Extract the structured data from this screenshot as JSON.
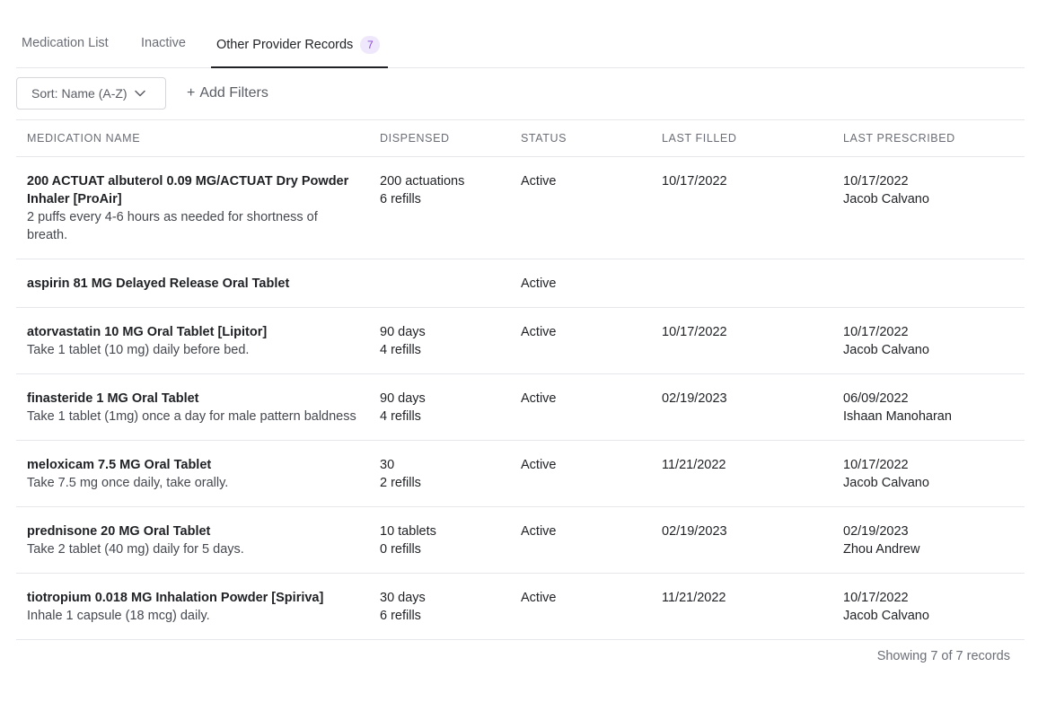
{
  "tabs": [
    {
      "label": "Medication List"
    },
    {
      "label": "Inactive"
    },
    {
      "label": "Other Provider Records",
      "count": "7"
    }
  ],
  "toolbar": {
    "sort_label": "Sort: Name (A-Z)",
    "filters_plus": "+",
    "filters_label": "Add Filters"
  },
  "table": {
    "columns": [
      "MEDICATION NAME",
      "DISPENSED",
      "STATUS",
      "LAST FILLED",
      "LAST PRESCRIBED"
    ],
    "rows": [
      {
        "name": "200 ACTUAT albuterol 0.09 MG/ACTUAT Dry Powder Inhaler [ProAir]",
        "instructions": "2 puffs every 4-6 hours as needed for shortness of breath.",
        "dispensed": "200 actuations",
        "refills": "6 refills",
        "status": "Active",
        "last_filled": "10/17/2022",
        "last_prescribed_date": "10/17/2022",
        "prescriber": "Jacob Calvano"
      },
      {
        "name": "aspirin 81 MG Delayed Release Oral Tablet",
        "instructions": "",
        "dispensed": "",
        "refills": "",
        "status": "Active",
        "last_filled": "",
        "last_prescribed_date": "",
        "prescriber": ""
      },
      {
        "name": "atorvastatin 10 MG Oral Tablet [Lipitor]",
        "instructions": "Take 1 tablet (10 mg) daily before bed.",
        "dispensed": "90 days",
        "refills": "4 refills",
        "status": "Active",
        "last_filled": "10/17/2022",
        "last_prescribed_date": "10/17/2022",
        "prescriber": "Jacob Calvano"
      },
      {
        "name": "finasteride 1 MG Oral Tablet",
        "instructions": "Take 1 tablet (1mg) once a day for male pattern baldness",
        "dispensed": "90 days",
        "refills": "4 refills",
        "status": "Active",
        "last_filled": "02/19/2023",
        "last_prescribed_date": "06/09/2022",
        "prescriber": "Ishaan Manoharan"
      },
      {
        "name": "meloxicam 7.5 MG Oral Tablet",
        "instructions": "Take 7.5 mg once daily, take orally.",
        "dispensed": "30",
        "refills": "2 refills",
        "status": "Active",
        "last_filled": "11/21/2022",
        "last_prescribed_date": "10/17/2022",
        "prescriber": "Jacob Calvano"
      },
      {
        "name": "prednisone 20 MG Oral Tablet",
        "instructions": "Take 2 tablet (40 mg) daily for 5 days.",
        "dispensed": "10 tablets",
        "refills": "0 refills",
        "status": "Active",
        "last_filled": "02/19/2023",
        "last_prescribed_date": "02/19/2023",
        "prescriber": "Zhou Andrew"
      },
      {
        "name": "tiotropium 0.018 MG Inhalation Powder [Spiriva]",
        "instructions": "Inhale 1 capsule (18 mcg) daily.",
        "dispensed": "30 days",
        "refills": "6 refills",
        "status": "Active",
        "last_filled": "11/21/2022",
        "last_prescribed_date": "10/17/2022",
        "prescriber": "Jacob Calvano"
      }
    ]
  },
  "footer": {
    "summary": "Showing 7 of 7 records"
  },
  "colors": {
    "accent_badge_bg": "#efe7fb",
    "accent_badge_text": "#8a4bd6",
    "border": "#e6e7ea"
  },
  "icons": {
    "sort": "chevron-down-icon"
  }
}
